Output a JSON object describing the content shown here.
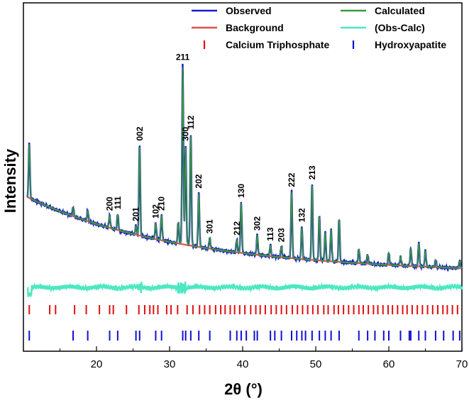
{
  "chart_data": {
    "type": "line",
    "title": "",
    "xlabel": "2θ (°)",
    "ylabel": "Intensity",
    "xlim": [
      10,
      70
    ],
    "xticks": [
      20,
      30,
      40,
      50,
      60,
      70
    ],
    "legend": [
      {
        "label": "Observed",
        "color": "#1a1acc",
        "kind": "line"
      },
      {
        "label": "Calculated",
        "color": "#3a9a3a",
        "kind": "line"
      },
      {
        "label": "Background",
        "color": "#e05050",
        "kind": "line"
      },
      {
        "label": "(Obs-Calc)",
        "color": "#4de8c0",
        "kind": "line"
      },
      {
        "label": "Calcium Triphosphate",
        "color": "#e01010",
        "kind": "tick"
      },
      {
        "label": "Hydroxyapatite",
        "color": "#1010d0",
        "kind": "tick"
      }
    ],
    "peaks": [
      {
        "x": 10.8,
        "h": 0.3
      },
      {
        "x": 16.8,
        "h": 0.05
      },
      {
        "x": 18.8,
        "h": 0.06
      },
      {
        "x": 21.8,
        "h": 0.07
      },
      {
        "x": 22.9,
        "h": 0.09
      },
      {
        "x": 25.9,
        "h": 0.5
      },
      {
        "x": 25.4,
        "h": 0.05
      },
      {
        "x": 28.1,
        "h": 0.09
      },
      {
        "x": 28.9,
        "h": 0.14
      },
      {
        "x": 31.2,
        "h": 0.12
      },
      {
        "x": 31.8,
        "h": 1.0
      },
      {
        "x": 32.2,
        "h": 0.55
      },
      {
        "x": 32.9,
        "h": 0.62
      },
      {
        "x": 34.0,
        "h": 0.3
      },
      {
        "x": 35.5,
        "h": 0.06
      },
      {
        "x": 39.2,
        "h": 0.07
      },
      {
        "x": 39.8,
        "h": 0.28
      },
      {
        "x": 42.0,
        "h": 0.11
      },
      {
        "x": 43.8,
        "h": 0.06
      },
      {
        "x": 45.3,
        "h": 0.06
      },
      {
        "x": 46.7,
        "h": 0.37
      },
      {
        "x": 48.1,
        "h": 0.18
      },
      {
        "x": 49.5,
        "h": 0.42
      },
      {
        "x": 50.5,
        "h": 0.25
      },
      {
        "x": 51.3,
        "h": 0.16
      },
      {
        "x": 52.1,
        "h": 0.18
      },
      {
        "x": 53.2,
        "h": 0.24
      },
      {
        "x": 55.9,
        "h": 0.08
      },
      {
        "x": 57.1,
        "h": 0.05
      },
      {
        "x": 60.0,
        "h": 0.07
      },
      {
        "x": 61.6,
        "h": 0.05
      },
      {
        "x": 63.0,
        "h": 0.1
      },
      {
        "x": 64.1,
        "h": 0.13
      },
      {
        "x": 65.0,
        "h": 0.09
      },
      {
        "x": 66.4,
        "h": 0.04
      },
      {
        "x": 69.7,
        "h": 0.04
      }
    ],
    "hkl_labels": [
      {
        "text": "211",
        "x": 31.8,
        "rotate": false
      },
      {
        "text": "112",
        "x": 32.9,
        "rotate": true
      },
      {
        "text": "300",
        "x": 32.2,
        "rotate": true
      },
      {
        "text": "002",
        "x": 25.9,
        "rotate": true
      },
      {
        "text": "200",
        "x": 21.8,
        "rotate": true
      },
      {
        "text": "111",
        "x": 22.9,
        "rotate": true
      },
      {
        "text": "201",
        "x": 25.4,
        "rotate": true
      },
      {
        "text": "102",
        "x": 28.1,
        "rotate": true
      },
      {
        "text": "210",
        "x": 28.9,
        "rotate": true
      },
      {
        "text": "202",
        "x": 34.0,
        "rotate": true
      },
      {
        "text": "301",
        "x": 35.5,
        "rotate": true
      },
      {
        "text": "212",
        "x": 39.2,
        "rotate": true
      },
      {
        "text": "130",
        "x": 39.8,
        "rotate": true
      },
      {
        "text": "302",
        "x": 42.0,
        "rotate": true
      },
      {
        "text": "113",
        "x": 43.8,
        "rotate": true
      },
      {
        "text": "203",
        "x": 45.3,
        "rotate": true
      },
      {
        "text": "222",
        "x": 46.7,
        "rotate": true
      },
      {
        "text": "132",
        "x": 48.1,
        "rotate": true
      },
      {
        "text": "213",
        "x": 49.5,
        "rotate": true
      }
    ],
    "calcium_triphosphate_ticks": [
      10.8,
      13.6,
      14.4,
      17.0,
      18.6,
      20.4,
      21.8,
      22.3,
      24.1,
      25.8,
      26.6,
      27.3,
      27.8,
      28.4,
      29.6,
      30.2,
      31.1,
      32.4,
      33.2,
      34.1,
      34.8,
      35.5,
      36.3,
      37.0,
      37.6,
      38.3,
      38.9,
      39.6,
      40.3,
      41.1,
      41.8,
      42.4,
      43.1,
      43.9,
      44.6,
      45.3,
      46.0,
      46.8,
      47.5,
      48.2,
      48.9,
      49.6,
      50.3,
      51.1,
      51.7,
      52.5,
      53.1,
      53.8,
      54.5,
      55.2,
      55.9,
      56.5,
      57.2,
      57.9,
      58.5,
      59.2,
      59.9,
      60.5,
      61.2,
      61.9,
      62.5,
      63.2,
      63.9,
      64.6,
      65.3,
      66.0,
      66.7,
      67.4,
      68.0,
      68.7,
      69.4
    ],
    "hydroxyapatite_ticks": [
      10.8,
      16.8,
      18.8,
      21.8,
      22.9,
      25.4,
      25.9,
      28.1,
      28.9,
      31.8,
      32.2,
      32.9,
      34.0,
      35.5,
      38.3,
      39.2,
      39.8,
      40.5,
      41.6,
      42.0,
      43.8,
      44.4,
      45.3,
      46.7,
      47.4,
      48.1,
      48.6,
      49.5,
      50.5,
      51.3,
      52.1,
      53.2,
      55.9,
      57.1,
      58.1,
      59.3,
      60.0,
      61.6,
      62.8,
      63.0,
      64.1,
      65.0,
      66.4,
      67.5,
      68.8,
      69.7
    ]
  }
}
